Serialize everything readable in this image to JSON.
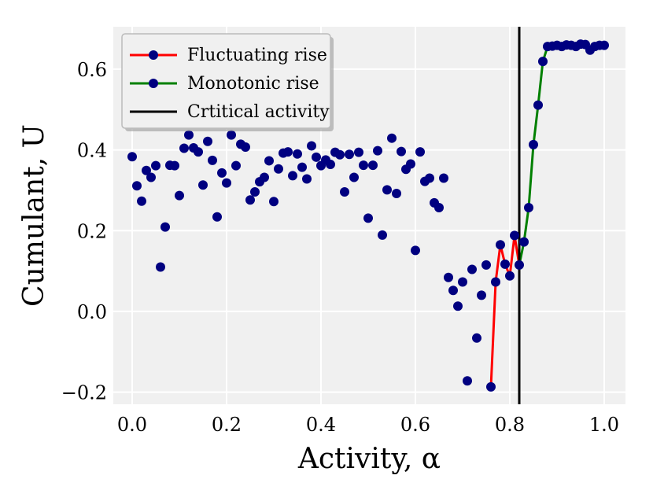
{
  "chart_data": {
    "type": "scatter",
    "title": "",
    "xlabel": "Activity, α",
    "ylabel": "Cumulant, U",
    "xlim": [
      -0.04,
      1.045
    ],
    "ylim": [
      -0.23,
      0.705
    ],
    "xticks": [
      0.0,
      0.2,
      0.4,
      0.6,
      0.8,
      1.0
    ],
    "xtick_labels": [
      "0.0",
      "0.2",
      "0.4",
      "0.6",
      "0.8",
      "1.0"
    ],
    "yticks": [
      -0.2,
      0.0,
      0.2,
      0.4,
      0.6
    ],
    "ytick_labels": [
      "−0.2",
      "0.0",
      "0.2",
      "0.4",
      "0.6"
    ],
    "grid": true,
    "background": "#f0f0f0",
    "grid_color": "#ffffff",
    "point_color": "#000080",
    "legend_position": "top-left",
    "scatter": {
      "x": [
        0.0,
        0.01,
        0.02,
        0.03,
        0.04,
        0.05,
        0.06,
        0.07,
        0.08,
        0.09,
        0.1,
        0.11,
        0.12,
        0.13,
        0.14,
        0.15,
        0.16,
        0.17,
        0.18,
        0.19,
        0.2,
        0.21,
        0.22,
        0.23,
        0.24,
        0.25,
        0.26,
        0.27,
        0.28,
        0.29,
        0.3,
        0.31,
        0.32,
        0.33,
        0.34,
        0.35,
        0.36,
        0.37,
        0.38,
        0.39,
        0.4,
        0.41,
        0.42,
        0.43,
        0.44,
        0.45,
        0.46,
        0.47,
        0.48,
        0.49,
        0.5,
        0.51,
        0.52,
        0.53,
        0.54,
        0.55,
        0.56,
        0.57,
        0.58,
        0.59,
        0.6,
        0.61,
        0.62,
        0.63,
        0.64,
        0.65,
        0.66,
        0.67,
        0.68,
        0.69,
        0.7,
        0.71,
        0.72,
        0.73,
        0.74,
        0.75,
        0.76,
        0.77,
        0.78,
        0.79,
        0.8,
        0.81,
        0.82,
        0.83,
        0.84,
        0.85,
        0.86,
        0.87,
        0.88,
        0.89,
        0.9,
        0.91,
        0.92,
        0.93,
        0.94,
        0.95,
        0.96,
        0.97,
        0.98,
        0.99,
        1.0
      ],
      "y": [
        0.383,
        0.311,
        0.273,
        0.349,
        0.332,
        0.361,
        0.11,
        0.209,
        0.362,
        0.361,
        0.287,
        0.404,
        0.437,
        0.405,
        0.395,
        0.313,
        0.421,
        0.374,
        0.234,
        0.343,
        0.318,
        0.437,
        0.361,
        0.414,
        0.407,
        0.276,
        0.296,
        0.321,
        0.332,
        0.373,
        0.272,
        0.353,
        0.392,
        0.395,
        0.336,
        0.39,
        0.357,
        0.328,
        0.41,
        0.382,
        0.361,
        0.375,
        0.364,
        0.394,
        0.388,
        0.296,
        0.389,
        0.332,
        0.394,
        0.362,
        0.231,
        0.362,
        0.398,
        0.189,
        0.301,
        0.429,
        0.292,
        0.396,
        0.352,
        0.365,
        0.151,
        0.395,
        0.322,
        0.33,
        0.269,
        0.257,
        0.33,
        0.084,
        0.052,
        0.013,
        0.073,
        -0.172,
        0.104,
        -0.066,
        0.04,
        0.115,
        -0.187,
        0.073,
        0.165,
        0.117,
        0.088,
        0.188,
        0.115,
        0.172,
        0.257,
        0.413,
        0.511,
        0.619,
        0.656,
        0.657,
        0.659,
        0.656,
        0.66,
        0.659,
        0.656,
        0.662,
        0.661,
        0.647,
        0.656,
        0.659,
        0.659
      ]
    },
    "series": [
      {
        "name": "Fluctuating rise",
        "color": "#ff0000",
        "x": [
          0.76,
          0.77,
          0.78,
          0.79,
          0.8,
          0.81,
          0.82
        ],
        "y": [
          -0.187,
          0.073,
          0.165,
          0.117,
          0.088,
          0.188,
          0.115
        ]
      },
      {
        "name": "Monotonic rise",
        "color": "#008000",
        "x": [
          0.82,
          0.83,
          0.84,
          0.85,
          0.86,
          0.87,
          0.88
        ],
        "y": [
          0.115,
          0.172,
          0.257,
          0.413,
          0.511,
          0.619,
          0.656
        ]
      }
    ],
    "critical_line": {
      "name": "Crtitical activity",
      "x": 0.82,
      "color": "#000000"
    },
    "legend": [
      {
        "label": "Fluctuating rise",
        "color": "#ff0000",
        "marker": true
      },
      {
        "label": "Monotonic rise",
        "color": "#008000",
        "marker": true
      },
      {
        "label": "Crtitical activity",
        "color": "#000000",
        "marker": false
      }
    ]
  }
}
